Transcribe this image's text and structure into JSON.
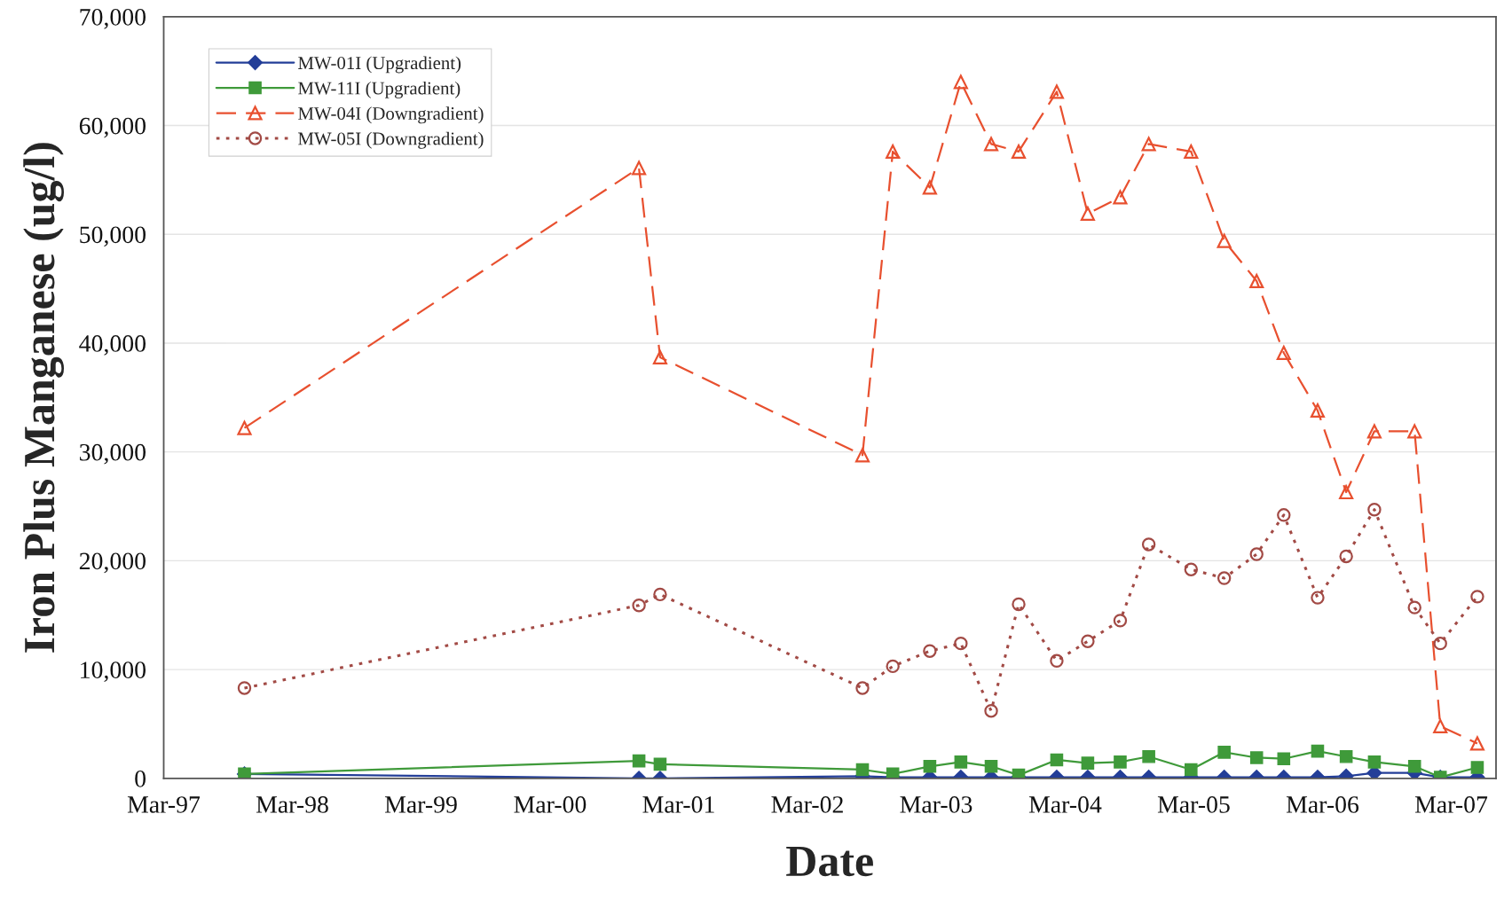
{
  "chart_data": {
    "type": "line",
    "xlabel": "Date",
    "ylabel": "Iron Plus Manganese (ug/l)",
    "x": [
      "1997-10-16",
      "2000-11-08",
      "2001-01-07",
      "2002-08-04",
      "2002-10-29",
      "2003-02-11",
      "2003-05-10",
      "2003-08-04",
      "2003-10-21",
      "2004-02-06",
      "2004-05-04",
      "2004-08-04",
      "2004-10-24",
      "2005-02-21",
      "2005-05-26",
      "2005-08-26",
      "2005-11-11",
      "2006-02-15",
      "2006-05-07",
      "2006-07-26",
      "2006-11-17",
      "2007-01-29",
      "2007-05-14"
    ],
    "series": [
      {
        "name": "MW-01I (Upgradient)",
        "color": "#233e98",
        "marker": "diamond",
        "line_style": "solid",
        "values": [
          400,
          0,
          0,
          200,
          100,
          100,
          100,
          100,
          100,
          100,
          100,
          100,
          100,
          100,
          100,
          100,
          100,
          100,
          200,
          500,
          500,
          100,
          100
        ]
      },
      {
        "name": "MW-11I (Upgradient)",
        "color": "#3f9a3a",
        "marker": "square",
        "line_style": "solid",
        "values": [
          400,
          1600,
          1300,
          800,
          400,
          1100,
          1500,
          1100,
          300,
          1700,
          1400,
          1500,
          2000,
          800,
          2400,
          1900,
          1800,
          2500,
          2000,
          1500,
          1100,
          100,
          1000
        ]
      },
      {
        "name": "MW-04I (Downgradient)",
        "color": "#e8502f",
        "marker": "triangle",
        "line_style": "dashed",
        "values": [
          32200,
          56100,
          38700,
          29700,
          57600,
          54300,
          64000,
          58300,
          57600,
          63100,
          51900,
          53400,
          58300,
          57600,
          49400,
          45700,
          39100,
          33800,
          26300,
          31900,
          31900,
          4800,
          3200
        ]
      },
      {
        "name": "MW-05I (Downgradient)",
        "color": "#a24a45",
        "marker": "circle",
        "line_style": "dotted",
        "values": [
          8300,
          15900,
          16900,
          8300,
          10300,
          11700,
          12400,
          6200,
          16000,
          10800,
          12600,
          14500,
          21500,
          19200,
          18400,
          20600,
          24200,
          16600,
          20400,
          24700,
          15700,
          12400,
          16700
        ]
      }
    ],
    "xlim": [
      "1997-03-01",
      "2007-07-06"
    ],
    "xticks": [
      {
        "value": "1997-03",
        "label": "Mar-97"
      },
      {
        "value": "1998-03",
        "label": "Mar-98"
      },
      {
        "value": "1999-03",
        "label": "Mar-99"
      },
      {
        "value": "2000-03",
        "label": "Mar-00"
      },
      {
        "value": "2001-03",
        "label": "Mar-01"
      },
      {
        "value": "2002-03",
        "label": "Mar-02"
      },
      {
        "value": "2003-03",
        "label": "Mar-03"
      },
      {
        "value": "2004-03",
        "label": "Mar-04"
      },
      {
        "value": "2005-03",
        "label": "Mar-05"
      },
      {
        "value": "2006-03",
        "label": "Mar-06"
      },
      {
        "value": "2007-03",
        "label": "Mar-07"
      }
    ],
    "ylim": [
      0,
      70000
    ],
    "yticks": [
      0,
      {
        "value": 10000,
        "label": "10,000"
      },
      {
        "value": 20000,
        "label": "20,000"
      },
      {
        "value": 30000,
        "label": "30,000"
      },
      {
        "value": 40000,
        "label": "40,000"
      },
      {
        "value": 50000,
        "label": "50,000"
      },
      {
        "value": 60000,
        "label": "60,000"
      },
      {
        "value": 70000,
        "label": "70,000"
      }
    ],
    "grid": "y",
    "legend": "top left"
  }
}
